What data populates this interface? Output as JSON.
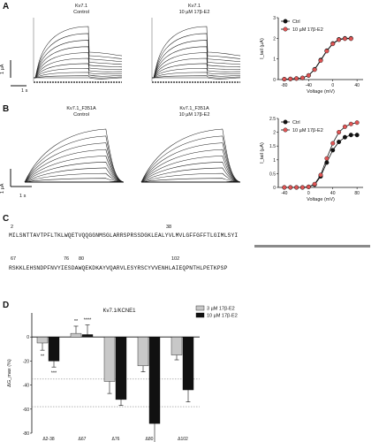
{
  "panelA": {
    "label": "A",
    "trace_left_title": [
      "Kv7.1",
      "Control"
    ],
    "trace_right_title": [
      "Kv7.1",
      "10 µM 17β-E2"
    ],
    "scale_y": "1 µA",
    "scale_x": "1 s",
    "chart_data": {
      "type": "scatter",
      "ylabel": "I_tail (µA)",
      "xlabel": "Voltage (mV)",
      "x_ticks": [
        -80,
        -40,
        0,
        40
      ],
      "y_ticks": [
        0,
        1,
        2,
        3
      ],
      "xlim": [
        -90,
        50
      ],
      "ylim": [
        0,
        3
      ],
      "legend_position": "top-left",
      "series": [
        {
          "name": "Ctrl",
          "color": "#111111",
          "x": [
            -80,
            -70,
            -60,
            -50,
            -40,
            -30,
            -20,
            -10,
            0,
            10,
            20,
            30
          ],
          "y": [
            0.02,
            0.03,
            0.05,
            0.08,
            0.2,
            0.5,
            0.95,
            1.4,
            1.75,
            1.95,
            2.0,
            2.0
          ]
        },
        {
          "name": "10 µM 17β-E2",
          "color": "#e05555",
          "x": [
            -80,
            -70,
            -60,
            -50,
            -40,
            -30,
            -20,
            -10,
            0,
            10,
            20,
            30
          ],
          "y": [
            0.02,
            0.03,
            0.05,
            0.08,
            0.2,
            0.48,
            0.92,
            1.38,
            1.73,
            1.93,
            1.98,
            1.98
          ]
        }
      ]
    }
  },
  "panelB": {
    "label": "B",
    "trace_left_title": [
      "Kv7.1_F351A",
      "Control"
    ],
    "trace_right_title": [
      "Kv7.1_F351A",
      "10 µM 17β-E2"
    ],
    "scale_y": "1 µA",
    "scale_x": "1 s",
    "chart_data": {
      "type": "scatter",
      "ylabel": "I_tail (µA)",
      "xlabel": "Voltage (mV)",
      "x_ticks": [
        -40,
        0,
        40,
        80
      ],
      "y_ticks": [
        0.0,
        0.5,
        1.0,
        1.5,
        2.0,
        2.5
      ],
      "xlim": [
        -50,
        90
      ],
      "ylim": [
        0,
        2.5
      ],
      "legend_position": "top-left",
      "series": [
        {
          "name": "Ctrl",
          "color": "#111111",
          "x": [
            -40,
            -30,
            -20,
            -10,
            0,
            10,
            20,
            30,
            40,
            50,
            60,
            70,
            80
          ],
          "y": [
            0.0,
            0.0,
            0.0,
            0.0,
            0.02,
            0.1,
            0.4,
            0.9,
            1.35,
            1.65,
            1.82,
            1.9,
            1.9
          ]
        },
        {
          "name": "10 µM 17β-E2",
          "color": "#e05555",
          "x": [
            -40,
            -30,
            -20,
            -10,
            0,
            10,
            20,
            30,
            40,
            50,
            60,
            70,
            80
          ],
          "y": [
            0.0,
            0.0,
            0.0,
            0.0,
            0.02,
            0.12,
            0.45,
            1.05,
            1.6,
            2.0,
            2.2,
            2.3,
            2.35
          ]
        }
      ]
    }
  },
  "panelC": {
    "label": "C",
    "num_row1": [
      {
        "text": "2"
      },
      {
        "text": "38"
      }
    ],
    "line1": "MILSNTTAVTPFLTKLWQETVQQGGNMSGLARRSPRSSDGKLEALYVLMVLGFFGFFTLGIMLSYI",
    "num_row2": [
      {
        "text": "67"
      },
      {
        "text": "76"
      },
      {
        "text": "80"
      },
      {
        "text": "102"
      }
    ],
    "line2": "RSKKLEHSNDPFNVYIESDAWQEKDKAYVQARVLESYRSCYVVENHLAIEQPNTHLPETKPSP"
  },
  "panelD": {
    "label": "D",
    "chart_data": {
      "type": "bar",
      "title": "Kv7.1/KCNE1",
      "ylabel": "ΔG_max (%)",
      "categories": [
        "Δ2-38",
        "Δ67",
        "Δ76",
        "Δ80",
        "Δ102"
      ],
      "ylim": [
        -80,
        20
      ],
      "y_ticks": [
        -80,
        -60,
        -40,
        -20,
        0
      ],
      "reference_lines": [
        -35,
        -58
      ],
      "legend_position": "top-right",
      "series": [
        {
          "name": "3 µM 17β-E2",
          "color": "#c8c8c8",
          "values": [
            -5,
            3,
            -37,
            -24,
            -15
          ],
          "errors": [
            6,
            6,
            10,
            5,
            4
          ],
          "stars": [
            "**",
            "**",
            "",
            "",
            ""
          ]
        },
        {
          "name": "10 µM 17β-E2",
          "color": "#111111",
          "values": [
            -20,
            2,
            -52,
            -72,
            -44
          ],
          "errors": [
            5,
            8,
            5,
            18,
            10
          ],
          "stars": [
            "***",
            "****",
            "",
            "",
            ""
          ]
        }
      ]
    }
  }
}
